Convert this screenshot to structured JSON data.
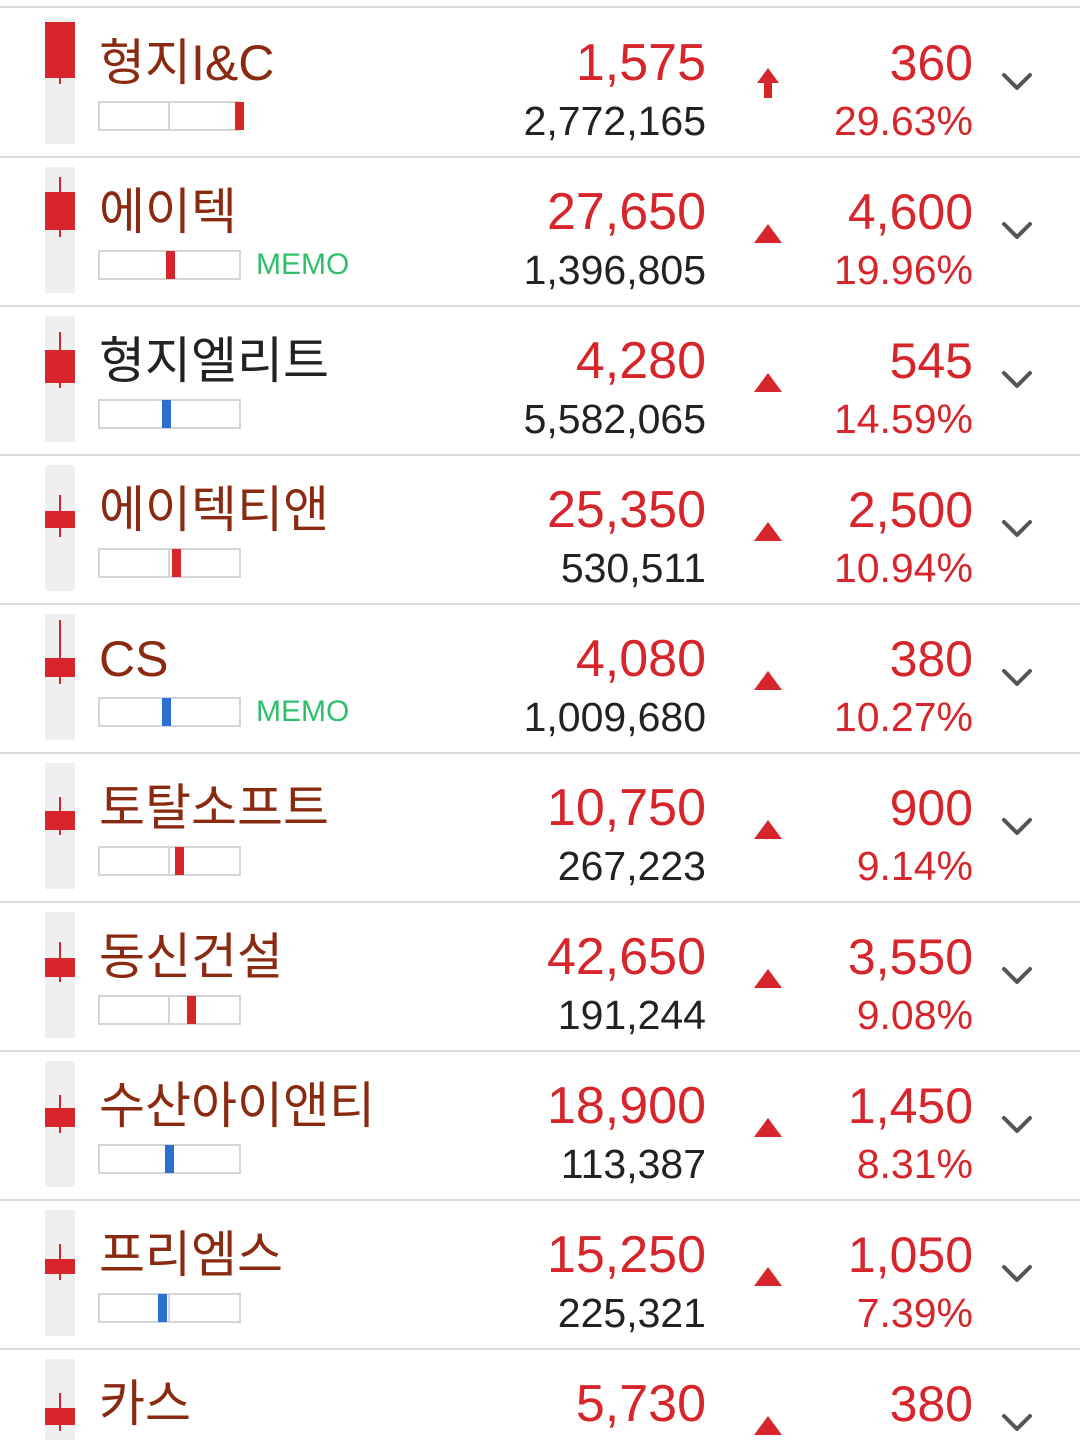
{
  "rows": [
    {
      "name": "형지I&C",
      "name_color": "#8a2a10",
      "price": "1,575",
      "volume": "2,772,165",
      "change": "360",
      "percent": "29.63%",
      "arrow": "limit_up"
    },
    {
      "name": "에이텍",
      "name_color": "#8a2a10",
      "price": "27,650",
      "volume": "1,396,805",
      "change": "4,600",
      "percent": "19.96%",
      "arrow": "up",
      "memo": "MEMO"
    },
    {
      "name": "형지엘리트",
      "name_color": "#222222",
      "price": "4,280",
      "volume": "5,582,065",
      "change": "545",
      "percent": "14.59%",
      "arrow": "up"
    },
    {
      "name": "에이텍티앤",
      "name_color": "#8a2a10",
      "price": "25,350",
      "volume": "530,511",
      "change": "2,500",
      "percent": "10.94%",
      "arrow": "up"
    },
    {
      "name": "CS",
      "name_color": "#8a2a10",
      "price": "4,080",
      "volume": "1,009,680",
      "change": "380",
      "percent": "10.27%",
      "arrow": "up",
      "memo": "MEMO"
    },
    {
      "name": "토탈소프트",
      "name_color": "#8a2a10",
      "price": "10,750",
      "volume": "267,223",
      "change": "900",
      "percent": "9.14%",
      "arrow": "up"
    },
    {
      "name": "동신건설",
      "name_color": "#8a2a10",
      "price": "42,650",
      "volume": "191,244",
      "change": "3,550",
      "percent": "9.08%",
      "arrow": "up"
    },
    {
      "name": "수산아이앤티",
      "name_color": "#8a2a10",
      "price": "18,900",
      "volume": "113,387",
      "change": "1,450",
      "percent": "8.31%",
      "arrow": "up"
    },
    {
      "name": "프리엠스",
      "name_color": "#8a2a10",
      "price": "15,250",
      "volume": "225,321",
      "change": "1,050",
      "percent": "7.39%",
      "arrow": "up"
    },
    {
      "name": "카스",
      "name_color": "#8a2a10",
      "price": "5,730",
      "change": "380",
      "arrow": "up"
    }
  ]
}
